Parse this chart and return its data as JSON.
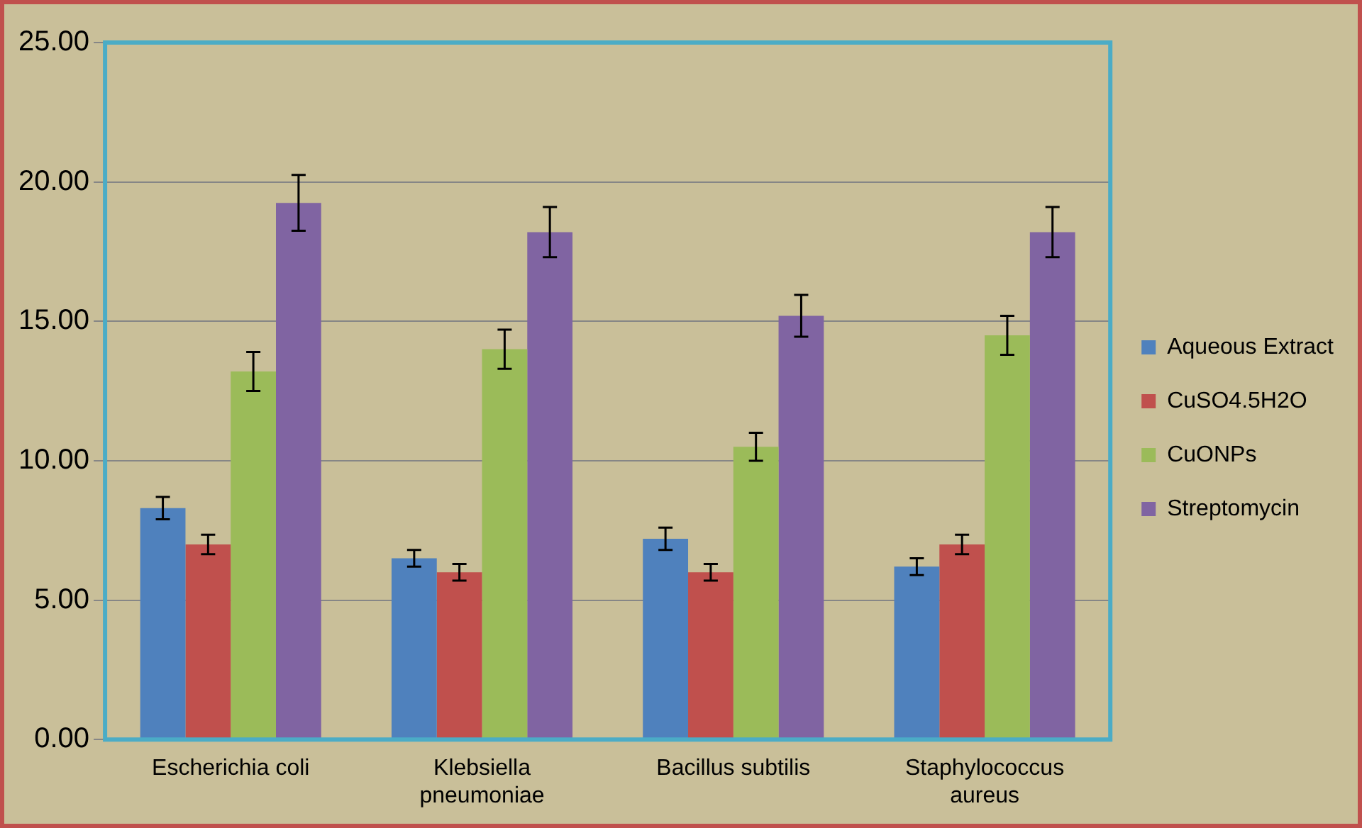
{
  "chart_data": {
    "type": "bar",
    "categories": [
      "Escherichia coli",
      "Klebsiella pneumoniae",
      "Bacillus subtilis",
      "Staphylococcus aureus"
    ],
    "series": [
      {
        "name": "Aqueous Extract",
        "color": "#4f81bd",
        "values": [
          8.3,
          6.5,
          7.2,
          6.2
        ],
        "errors": [
          0.4,
          0.3,
          0.4,
          0.3
        ]
      },
      {
        "name": "CuSO4.5H2O",
        "color": "#c0504d",
        "values": [
          7.0,
          6.0,
          6.0,
          7.0
        ],
        "errors": [
          0.35,
          0.3,
          0.3,
          0.35
        ]
      },
      {
        "name": "CuONPs",
        "color": "#9bbb59",
        "values": [
          13.2,
          14.0,
          10.5,
          14.5
        ],
        "errors": [
          0.7,
          0.7,
          0.5,
          0.7
        ]
      },
      {
        "name": "Streptomycin",
        "color": "#8064a2",
        "values": [
          19.25,
          18.2,
          15.2,
          18.2
        ],
        "errors": [
          1.0,
          0.9,
          0.75,
          0.9
        ]
      }
    ],
    "ylim": [
      0,
      25
    ],
    "yticks": [
      {
        "value": 0,
        "label": "0.00"
      },
      {
        "value": 5,
        "label": "5.00"
      },
      {
        "value": 10,
        "label": "10.00"
      },
      {
        "value": 15,
        "label": "15.00"
      },
      {
        "value": 20,
        "label": "20.00"
      },
      {
        "value": 25,
        "label": "25.00"
      }
    ],
    "grid": "y",
    "legend": "right"
  }
}
